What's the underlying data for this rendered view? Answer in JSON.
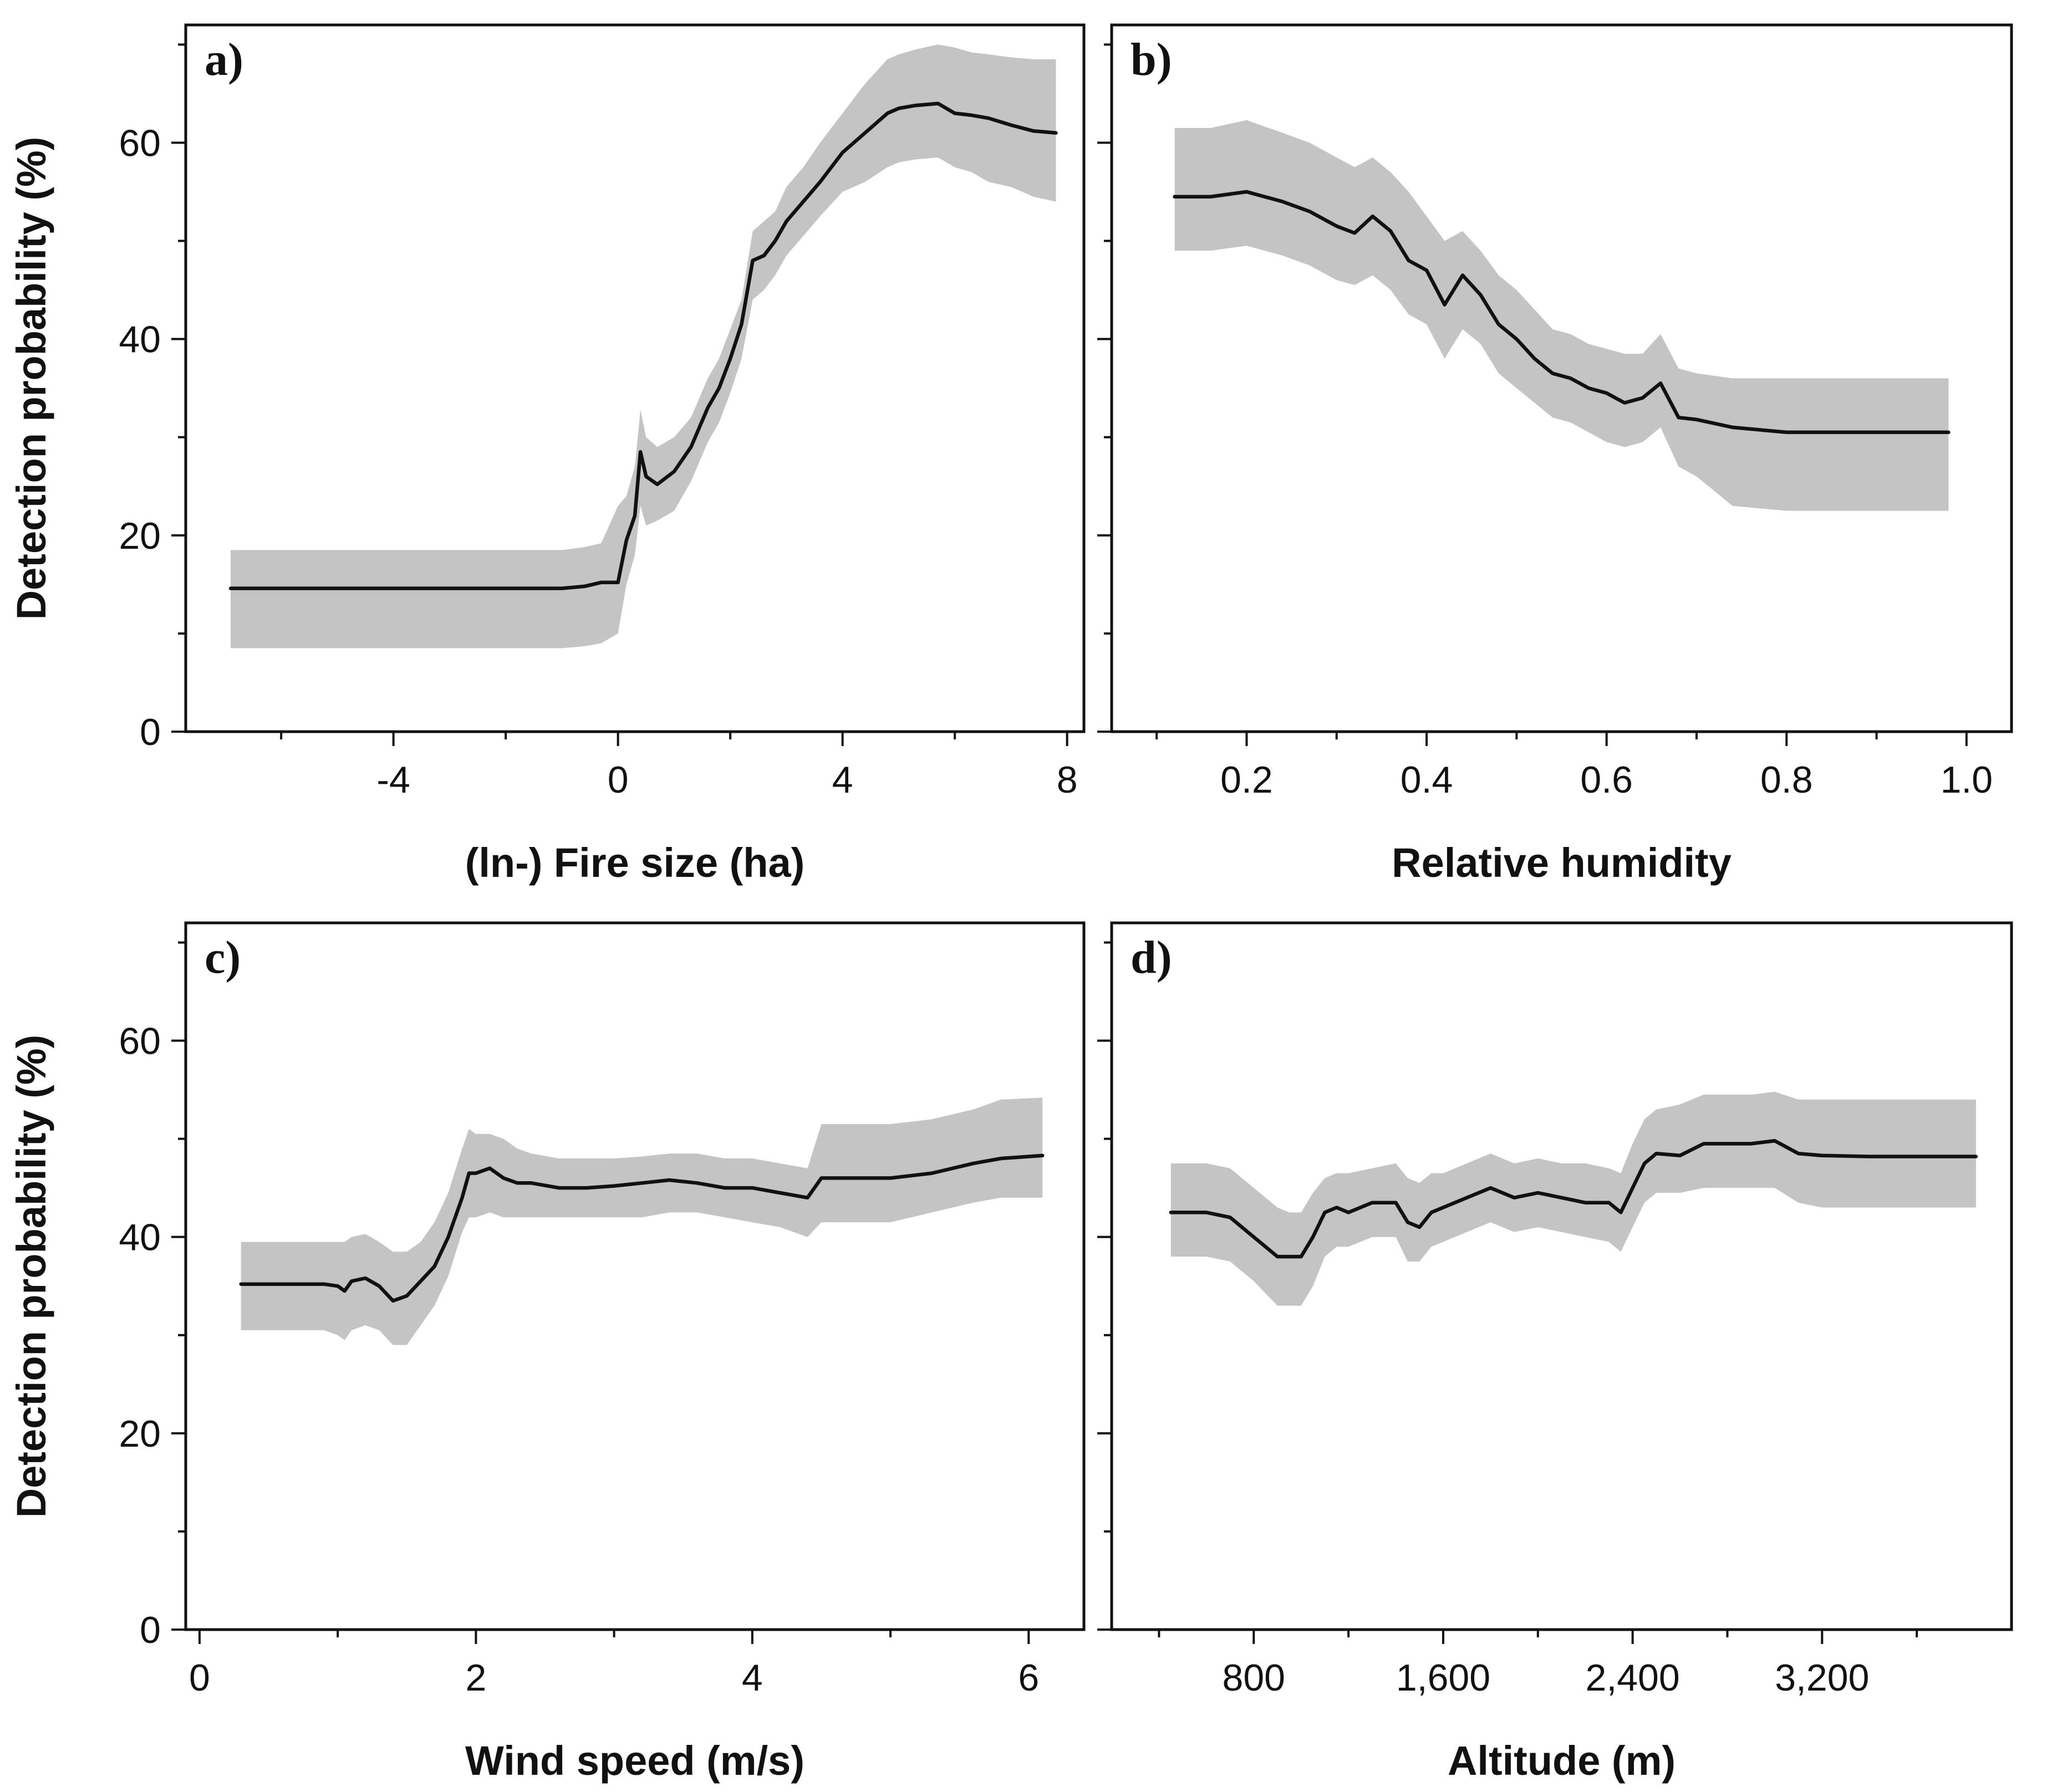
{
  "figure": {
    "colors": {
      "band": "#c4c4c4",
      "line": "#111111",
      "axis": "#111111"
    }
  },
  "chart_data": [
    {
      "type": "line",
      "panel": "a)",
      "xlabel": "(ln-) Fire size (ha)",
      "ylabel": "Detection probability (%)",
      "xlim": [
        -7.7,
        8.3
      ],
      "ylim": [
        0,
        72
      ],
      "xticks": [
        -4,
        0,
        4,
        8
      ],
      "xtick_labels": [
        "-4",
        "0",
        "4",
        "8"
      ],
      "xminor": [
        -6,
        -2,
        2,
        6
      ],
      "yticks": [
        0,
        20,
        40,
        60
      ],
      "ytick_labels": [
        "0",
        "20",
        "40",
        "60"
      ],
      "yminor": [
        10,
        30,
        50,
        70
      ],
      "series": [
        {
          "name": "mean",
          "x": [
            -6.9,
            -5,
            -3,
            -1,
            -0.6,
            -0.3,
            0,
            0.15,
            0.3,
            0.4,
            0.5,
            0.7,
            1.0,
            1.3,
            1.6,
            1.8,
            2.0,
            2.2,
            2.4,
            2.6,
            2.8,
            3.0,
            3.3,
            3.6,
            4.0,
            4.4,
            4.8,
            5.0,
            5.3,
            5.7,
            6.0,
            6.3,
            6.6,
            7.0,
            7.4,
            7.8
          ],
          "y": [
            14.6,
            14.6,
            14.6,
            14.6,
            14.8,
            15.2,
            15.2,
            19.5,
            22,
            28.5,
            26,
            25.2,
            26.5,
            29,
            33,
            35,
            38,
            41.5,
            48,
            48.5,
            50,
            52,
            54,
            56,
            59,
            61,
            63,
            63.5,
            63.8,
            64,
            63,
            62.8,
            62.5,
            61.8,
            61.2,
            61
          ]
        },
        {
          "name": "upper",
          "x": [
            -6.9,
            -5,
            -3,
            -1,
            -0.6,
            -0.3,
            0,
            0.15,
            0.3,
            0.4,
            0.5,
            0.7,
            1.0,
            1.3,
            1.6,
            1.8,
            2.0,
            2.2,
            2.4,
            2.6,
            2.8,
            3.0,
            3.3,
            3.6,
            4.0,
            4.4,
            4.8,
            5.0,
            5.3,
            5.7,
            6.0,
            6.3,
            6.6,
            7.0,
            7.4,
            7.8
          ],
          "y": [
            18.5,
            18.5,
            18.5,
            18.5,
            18.8,
            19.2,
            23,
            24,
            27,
            32.8,
            30,
            29,
            30,
            32,
            36,
            38,
            41,
            44,
            51,
            52,
            53,
            55.5,
            57.5,
            60,
            63,
            66,
            68.5,
            69,
            69.5,
            70,
            69.7,
            69.2,
            69,
            68.7,
            68.5,
            68.5
          ]
        },
        {
          "name": "lower",
          "x": [
            -6.9,
            -5,
            -3,
            -1,
            -0.6,
            -0.3,
            0,
            0.15,
            0.3,
            0.4,
            0.5,
            0.7,
            1.0,
            1.3,
            1.6,
            1.8,
            2.0,
            2.2,
            2.4,
            2.6,
            2.8,
            3.0,
            3.3,
            3.6,
            4.0,
            4.4,
            4.8,
            5.0,
            5.3,
            5.7,
            6.0,
            6.3,
            6.6,
            7.0,
            7.4,
            7.8
          ],
          "y": [
            8.5,
            8.5,
            8.5,
            8.5,
            8.7,
            9,
            10,
            15,
            18,
            23,
            21,
            21.5,
            22.5,
            25.5,
            29.5,
            31.5,
            34.5,
            38,
            44,
            45,
            46.5,
            48.5,
            50.5,
            52.5,
            55,
            56,
            57.5,
            58,
            58.3,
            58.5,
            57.5,
            57,
            56,
            55.5,
            54.5,
            54
          ]
        }
      ]
    },
    {
      "type": "line",
      "panel": "b)",
      "xlabel": "Relative humidity",
      "ylabel": "",
      "xlim": [
        0.05,
        1.05
      ],
      "ylim": [
        0,
        72
      ],
      "xticks": [
        0.2,
        0.4,
        0.6,
        0.8,
        1.0
      ],
      "xtick_labels": [
        "0.2",
        "0.4",
        "0.6",
        "0.8",
        "1.0"
      ],
      "xminor": [
        0.1,
        0.3,
        0.5,
        0.7,
        0.9
      ],
      "yticks": [
        0,
        20,
        40,
        60
      ],
      "ytick_labels": [
        "",
        "",
        "",
        ""
      ],
      "yminor": [
        10,
        30,
        50,
        70
      ],
      "series": [
        {
          "name": "mean",
          "x": [
            0.12,
            0.16,
            0.2,
            0.24,
            0.27,
            0.3,
            0.32,
            0.34,
            0.36,
            0.38,
            0.4,
            0.42,
            0.44,
            0.46,
            0.48,
            0.5,
            0.52,
            0.54,
            0.56,
            0.58,
            0.6,
            0.62,
            0.64,
            0.66,
            0.68,
            0.7,
            0.74,
            0.8,
            0.9,
            0.98
          ],
          "y": [
            54.5,
            54.5,
            55,
            54,
            53,
            51.5,
            50.8,
            52.5,
            51,
            48,
            47,
            43.5,
            46.5,
            44.5,
            41.5,
            40,
            38,
            36.5,
            36,
            35,
            34.5,
            33.5,
            34,
            35.5,
            32,
            31.8,
            31,
            30.5,
            30.5,
            30.5
          ]
        },
        {
          "name": "upper",
          "x": [
            0.12,
            0.16,
            0.2,
            0.24,
            0.27,
            0.3,
            0.32,
            0.34,
            0.36,
            0.38,
            0.4,
            0.42,
            0.44,
            0.46,
            0.48,
            0.5,
            0.52,
            0.54,
            0.56,
            0.58,
            0.6,
            0.62,
            0.64,
            0.66,
            0.68,
            0.7,
            0.74,
            0.8,
            0.9,
            0.98
          ],
          "y": [
            61.5,
            61.5,
            62.3,
            61,
            60,
            58.5,
            57.5,
            58.5,
            57,
            55,
            52.5,
            50,
            51,
            49,
            46.5,
            45,
            43,
            41,
            40.5,
            39.5,
            39,
            38.5,
            38.5,
            40.5,
            37,
            36.5,
            36,
            36,
            36,
            36
          ]
        },
        {
          "name": "lower",
          "x": [
            0.12,
            0.16,
            0.2,
            0.24,
            0.27,
            0.3,
            0.32,
            0.34,
            0.36,
            0.38,
            0.4,
            0.42,
            0.44,
            0.46,
            0.48,
            0.5,
            0.52,
            0.54,
            0.56,
            0.58,
            0.6,
            0.62,
            0.64,
            0.66,
            0.68,
            0.7,
            0.74,
            0.8,
            0.9,
            0.98
          ],
          "y": [
            49,
            49,
            49.5,
            48.5,
            47.5,
            46,
            45.5,
            46.5,
            45,
            42.5,
            41.5,
            38,
            41,
            39.5,
            36.5,
            35,
            33.5,
            32,
            31.5,
            30.5,
            29.5,
            29,
            29.5,
            31,
            27,
            26,
            23,
            22.5,
            22.5,
            22.5
          ]
        }
      ]
    },
    {
      "type": "line",
      "panel": "c)",
      "xlabel": "Wind speed (m/s)",
      "ylabel": "Detection probability (%)",
      "xlim": [
        -0.1,
        6.4
      ],
      "ylim": [
        0,
        72
      ],
      "xticks": [
        0,
        2,
        4,
        6
      ],
      "xtick_labels": [
        "0",
        "2",
        "4",
        "6"
      ],
      "xminor": [
        1,
        3,
        5
      ],
      "yticks": [
        0,
        20,
        40,
        60
      ],
      "ytick_labels": [
        "0",
        "20",
        "40",
        "60"
      ],
      "yminor": [
        10,
        30,
        50,
        70
      ],
      "series": [
        {
          "name": "mean",
          "x": [
            0.3,
            0.6,
            0.9,
            1.0,
            1.05,
            1.1,
            1.2,
            1.3,
            1.4,
            1.5,
            1.6,
            1.7,
            1.8,
            1.9,
            1.95,
            2.0,
            2.1,
            2.2,
            2.3,
            2.4,
            2.6,
            2.8,
            3.0,
            3.2,
            3.4,
            3.6,
            3.8,
            4.0,
            4.2,
            4.4,
            4.5,
            4.7,
            5.0,
            5.3,
            5.6,
            5.8,
            6.1
          ],
          "y": [
            35.2,
            35.2,
            35.2,
            35,
            34.5,
            35.5,
            35.8,
            35,
            33.5,
            34,
            35.5,
            37,
            40,
            44,
            46.5,
            46.5,
            47,
            46,
            45.5,
            45.5,
            45,
            45,
            45.2,
            45.5,
            45.8,
            45.5,
            45,
            45,
            44.5,
            44,
            46,
            46,
            46,
            46.5,
            47.5,
            48,
            48.3
          ]
        },
        {
          "name": "upper",
          "x": [
            0.3,
            0.6,
            0.9,
            1.0,
            1.05,
            1.1,
            1.2,
            1.3,
            1.4,
            1.5,
            1.6,
            1.7,
            1.8,
            1.9,
            1.95,
            2.0,
            2.1,
            2.2,
            2.3,
            2.4,
            2.6,
            2.8,
            3.0,
            3.2,
            3.4,
            3.6,
            3.8,
            4.0,
            4.2,
            4.4,
            4.5,
            4.7,
            5.0,
            5.3,
            5.6,
            5.8,
            6.1
          ],
          "y": [
            39.5,
            39.5,
            39.5,
            39.5,
            39.5,
            40,
            40.3,
            39.5,
            38.5,
            38.5,
            39.5,
            41.5,
            44.5,
            49,
            51,
            50.5,
            50.5,
            50,
            49,
            48.5,
            48,
            48,
            48,
            48.2,
            48.5,
            48.5,
            48,
            48,
            47.5,
            47,
            51.5,
            51.5,
            51.5,
            52,
            53,
            54,
            54.2
          ]
        },
        {
          "name": "lower",
          "x": [
            0.3,
            0.6,
            0.9,
            1.0,
            1.05,
            1.1,
            1.2,
            1.3,
            1.4,
            1.5,
            1.6,
            1.7,
            1.8,
            1.9,
            1.95,
            2.0,
            2.1,
            2.2,
            2.3,
            2.4,
            2.6,
            2.8,
            3.0,
            3.2,
            3.4,
            3.6,
            3.8,
            4.0,
            4.2,
            4.4,
            4.5,
            4.7,
            5.0,
            5.3,
            5.6,
            5.8,
            6.1
          ],
          "y": [
            30.5,
            30.5,
            30.5,
            30,
            29.5,
            30.5,
            31,
            30.5,
            29,
            29,
            31,
            33,
            36,
            40.5,
            42,
            42,
            42.5,
            42,
            42,
            42,
            42,
            42,
            42,
            42,
            42.5,
            42.5,
            42,
            41.5,
            41,
            40,
            41.5,
            41.5,
            41.5,
            42.5,
            43.5,
            44,
            44
          ]
        }
      ]
    },
    {
      "type": "line",
      "panel": "d)",
      "xlabel": "Altitude (m)",
      "ylabel": "",
      "xlim": [
        200,
        4000
      ],
      "ylim": [
        0,
        72
      ],
      "xticks": [
        800,
        1600,
        2400,
        3200
      ],
      "xtick_labels": [
        "800",
        "1,600",
        "2,400",
        "3,200"
      ],
      "xminor": [
        400,
        1200,
        2000,
        2800,
        3600
      ],
      "yticks": [
        0,
        20,
        40,
        60
      ],
      "ytick_labels": [
        "",
        "",
        "",
        ""
      ],
      "yminor": [
        10,
        30,
        50,
        70
      ],
      "series": [
        {
          "name": "mean",
          "x": [
            450,
            600,
            700,
            800,
            900,
            950,
            1000,
            1050,
            1100,
            1150,
            1200,
            1300,
            1400,
            1450,
            1500,
            1550,
            1600,
            1700,
            1800,
            1900,
            2000,
            2100,
            2200,
            2300,
            2350,
            2400,
            2450,
            2500,
            2600,
            2700,
            2800,
            2900,
            3000,
            3100,
            3200,
            3400,
            3600,
            3850
          ],
          "y": [
            42.5,
            42.5,
            42,
            40,
            38,
            38,
            38,
            40,
            42.5,
            43,
            42.5,
            43.5,
            43.5,
            41.5,
            41,
            42.5,
            43,
            44,
            45,
            44,
            44.5,
            44,
            43.5,
            43.5,
            42.5,
            45,
            47.5,
            48.5,
            48.3,
            49.5,
            49.5,
            49.5,
            49.8,
            48.5,
            48.3,
            48.2,
            48.2,
            48.2
          ]
        },
        {
          "name": "upper",
          "x": [
            450,
            600,
            700,
            800,
            900,
            950,
            1000,
            1050,
            1100,
            1150,
            1200,
            1300,
            1400,
            1450,
            1500,
            1550,
            1600,
            1700,
            1800,
            1900,
            2000,
            2100,
            2200,
            2300,
            2350,
            2400,
            2450,
            2500,
            2600,
            2700,
            2800,
            2900,
            3000,
            3100,
            3200,
            3400,
            3600,
            3850
          ],
          "y": [
            47.5,
            47.5,
            47,
            45,
            43,
            42.5,
            42.5,
            44.5,
            46,
            46.5,
            46.5,
            47,
            47.5,
            46,
            45.5,
            46.5,
            46.5,
            47.5,
            48.5,
            47.5,
            48,
            47.5,
            47.5,
            47,
            46.5,
            49.5,
            52,
            53,
            53.5,
            54.5,
            54.5,
            54.5,
            54.8,
            54,
            54,
            54,
            54,
            54
          ]
        },
        {
          "name": "lower",
          "x": [
            450,
            600,
            700,
            800,
            900,
            950,
            1000,
            1050,
            1100,
            1150,
            1200,
            1300,
            1400,
            1450,
            1500,
            1550,
            1600,
            1700,
            1800,
            1900,
            2000,
            2100,
            2200,
            2300,
            2350,
            2400,
            2450,
            2500,
            2600,
            2700,
            2800,
            2900,
            3000,
            3100,
            3200,
            3400,
            3600,
            3850
          ],
          "y": [
            38,
            38,
            37.5,
            35.5,
            33,
            33,
            33,
            35,
            38,
            39,
            39,
            40,
            40,
            37.5,
            37.5,
            39,
            39.5,
            40.5,
            41.5,
            40.5,
            41,
            40.5,
            40,
            39.5,
            38.5,
            41,
            43.5,
            44.5,
            44.5,
            45,
            45,
            45,
            45,
            43.5,
            43,
            43,
            43,
            43
          ]
        }
      ]
    }
  ]
}
